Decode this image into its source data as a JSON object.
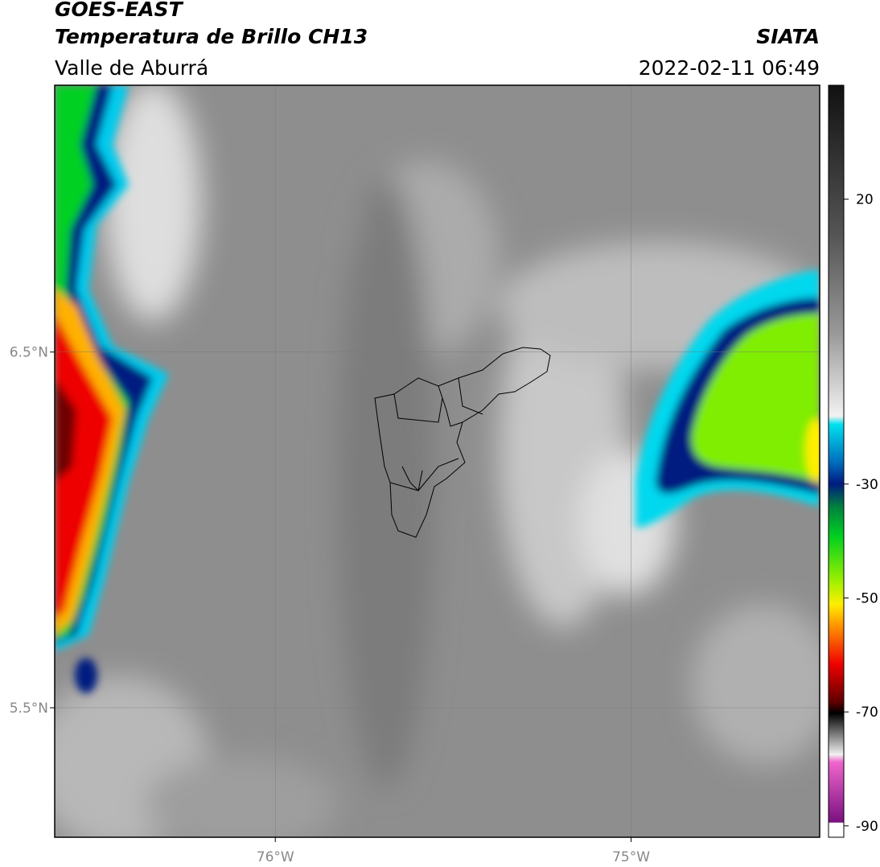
{
  "header": {
    "title": "GOES-EAST",
    "subtitle": "Temperatura de Brillo CH13",
    "region": "Valle de Aburrá",
    "source": "SIATA",
    "datetime": "2022-02-11 06:49"
  },
  "map": {
    "lat_lim": [
      5.136,
      7.25
    ],
    "lon_lim": [
      -76.62,
      -74.47
    ],
    "lat_ticks": [
      {
        "value": 6.5,
        "label": "6.5°N"
      },
      {
        "value": 5.5,
        "label": "5.5°N"
      }
    ],
    "lon_ticks": [
      {
        "value": -76,
        "label": "76°W"
      },
      {
        "value": -75,
        "label": "75°W"
      }
    ],
    "grid": true
  },
  "colorbar": {
    "lim": [
      -92,
      40
    ],
    "ticks": [
      20,
      -30,
      -50,
      -70,
      -90
    ]
  }
}
